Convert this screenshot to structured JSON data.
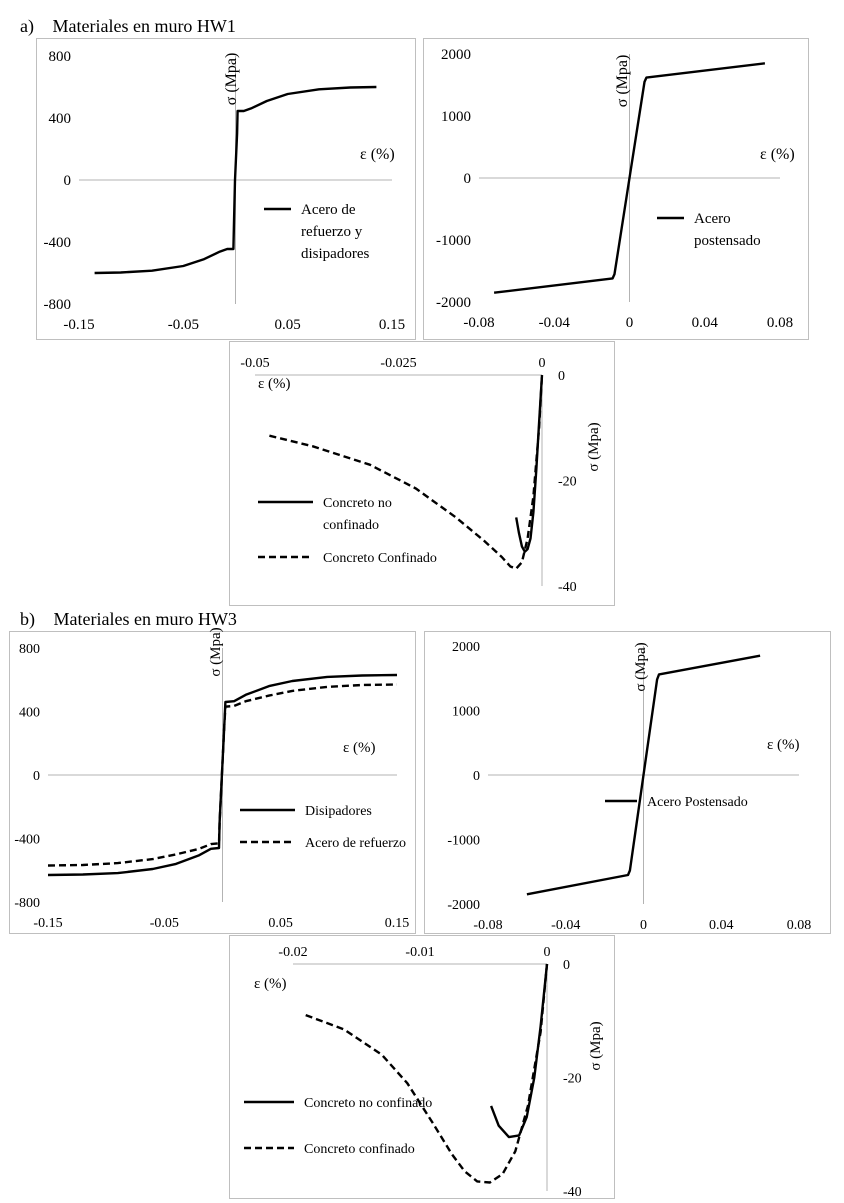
{
  "sections": [
    {
      "label": "a)",
      "title": "Materiales en muro HW1"
    },
    {
      "label": "b)",
      "title": "Materiales en muro HW3"
    }
  ],
  "chart_data": [
    {
      "type": "line",
      "xlabel": "ε (%)",
      "ylabel": "σ (Mpa)",
      "xlim": [
        -0.15,
        0.15
      ],
      "ylim": [
        -800,
        800
      ],
      "xticks": [
        -0.15,
        -0.05,
        0.05,
        0.15
      ],
      "yticks": [
        -800,
        -400,
        0,
        400,
        800
      ],
      "legend_position": "center-right",
      "series": [
        {
          "name": "Acero de refuerzo y disipadores",
          "dash": "solid",
          "x": [
            -0.135,
            -0.11,
            -0.08,
            -0.05,
            -0.03,
            -0.015,
            -0.008,
            -0.002,
            -0.0015,
            -0.0005,
            0.0015,
            0.002,
            0.008,
            0.015,
            0.03,
            0.05,
            0.08,
            0.11,
            0.135
          ],
          "y": [
            -600,
            -597,
            -585,
            -555,
            -510,
            -462,
            -445,
            -445,
            -300,
            0,
            300,
            445,
            445,
            462,
            510,
            555,
            585,
            597,
            600
          ]
        }
      ]
    },
    {
      "type": "line",
      "xlabel": "ε (%)",
      "ylabel": "σ (Mpa)",
      "xlim": [
        -0.08,
        0.08
      ],
      "ylim": [
        -2000,
        2000
      ],
      "xticks": [
        -0.08,
        -0.04,
        0,
        0.04,
        0.08
      ],
      "yticks": [
        -2000,
        -1000,
        0,
        1000,
        2000
      ],
      "legend_position": "center-right",
      "series": [
        {
          "name": "Acero postensado",
          "dash": "solid",
          "x": [
            -0.072,
            -0.009,
            -0.008,
            0,
            0.008,
            0.009,
            0.072
          ],
          "y": [
            -1850,
            -1620,
            -1550,
            0,
            1550,
            1620,
            1850
          ]
        }
      ]
    },
    {
      "type": "line",
      "xlabel": "ε (%)",
      "ylabel": "σ (Mpa)",
      "xlim": [
        -0.05,
        0
      ],
      "ylim": [
        -40,
        0
      ],
      "xticks": [
        -0.05,
        -0.025,
        0
      ],
      "yticks": [
        -40,
        -20,
        0
      ],
      "legend_position": "bottom-left",
      "series": [
        {
          "name": "Concreto no confinado",
          "dash": "solid",
          "x": [
            -0.0045,
            -0.004,
            -0.0035,
            -0.003,
            -0.0025,
            -0.002,
            -0.0015,
            -0.001,
            -0.0005,
            0
          ],
          "y": [
            -27,
            -30,
            -32.5,
            -33.5,
            -33,
            -31,
            -26,
            -18,
            -9,
            0
          ]
        },
        {
          "name": "Concreto Confinado",
          "dash": "dashed",
          "x": [
            -0.0475,
            -0.04,
            -0.03,
            -0.022,
            -0.015,
            -0.01,
            -0.007,
            -0.0055,
            -0.0045,
            -0.0035,
            -0.0025,
            -0.0015,
            -0.0005,
            0
          ],
          "y": [
            -11.5,
            -13.5,
            -17,
            -21.5,
            -27,
            -31.5,
            -34.5,
            -36.3,
            -36.7,
            -35.5,
            -31,
            -23,
            -10,
            0
          ]
        }
      ]
    },
    {
      "type": "line",
      "xlabel": "ε (%)",
      "ylabel": "σ (Mpa)",
      "xlim": [
        -0.15,
        0.15
      ],
      "ylim": [
        -800,
        800
      ],
      "xticks": [
        -0.15,
        -0.05,
        0.05,
        0.15
      ],
      "yticks": [
        -800,
        -400,
        0,
        400,
        800
      ],
      "legend_position": "center-right",
      "series": [
        {
          "name": "Disipadores",
          "dash": "solid",
          "x": [
            -0.15,
            -0.12,
            -0.09,
            -0.06,
            -0.04,
            -0.02,
            -0.01,
            -0.003,
            -0.0025,
            -0.0005,
            0.0015,
            0.0025,
            0.01,
            0.02,
            0.04,
            0.06,
            0.09,
            0.12,
            0.15
          ],
          "y": [
            -630,
            -627,
            -618,
            -592,
            -560,
            -505,
            -465,
            -460,
            -300,
            0,
            300,
            460,
            465,
            505,
            560,
            592,
            618,
            627,
            630
          ]
        },
        {
          "name": "Acero de refuerzo",
          "dash": "dashed",
          "x": [
            -0.15,
            -0.12,
            -0.09,
            -0.06,
            -0.04,
            -0.02,
            -0.01,
            -0.003,
            -0.0025,
            -0.0005,
            0.0015,
            0.0025,
            0.01,
            0.02,
            0.04,
            0.06,
            0.09,
            0.12,
            0.15
          ],
          "y": [
            -570,
            -567,
            -555,
            -530,
            -500,
            -465,
            -435,
            -430,
            -300,
            0,
            300,
            430,
            435,
            465,
            500,
            530,
            555,
            567,
            570
          ]
        }
      ]
    },
    {
      "type": "line",
      "xlabel": "ε (%)",
      "ylabel": "σ (Mpa)",
      "xlim": [
        -0.08,
        0.08
      ],
      "ylim": [
        -2000,
        2000
      ],
      "xticks": [
        -0.08,
        -0.04,
        0,
        0.04,
        0.08
      ],
      "yticks": [
        -2000,
        -1000,
        0,
        1000,
        2000
      ],
      "legend_position": "center-right",
      "series": [
        {
          "name": "Acero Postensado",
          "dash": "solid",
          "x": [
            -0.06,
            -0.008,
            -0.007,
            0,
            0.007,
            0.008,
            0.06
          ],
          "y": [
            -1850,
            -1550,
            -1480,
            0,
            1480,
            1560,
            1850
          ]
        }
      ]
    },
    {
      "type": "line",
      "xlabel": "ε (%)",
      "ylabel": "σ (Mpa)",
      "xlim": [
        -0.02,
        0
      ],
      "ylim": [
        -40,
        0
      ],
      "xticks": [
        -0.02,
        -0.01,
        0
      ],
      "yticks": [
        -40,
        -20,
        0
      ],
      "legend_position": "bottom-left",
      "series": [
        {
          "name": "Concreto no confinado",
          "dash": "solid",
          "x": [
            -0.0044,
            -0.0038,
            -0.003,
            -0.0022,
            -0.0016,
            -0.001,
            -0.0005,
            0
          ],
          "y": [
            -25,
            -28.5,
            -30.5,
            -30.2,
            -27,
            -20,
            -11,
            0
          ]
        },
        {
          "name": "Concreto confinado",
          "dash": "dashed",
          "x": [
            -0.019,
            -0.016,
            -0.013,
            -0.011,
            -0.009,
            -0.0075,
            -0.0065,
            -0.0055,
            -0.0045,
            -0.0035,
            -0.0025,
            -0.0015,
            -0.0005,
            0
          ],
          "y": [
            -9,
            -11.5,
            -16,
            -21,
            -28,
            -33.5,
            -36.5,
            -38.3,
            -38.5,
            -37,
            -33,
            -25,
            -12,
            0
          ]
        }
      ]
    }
  ]
}
